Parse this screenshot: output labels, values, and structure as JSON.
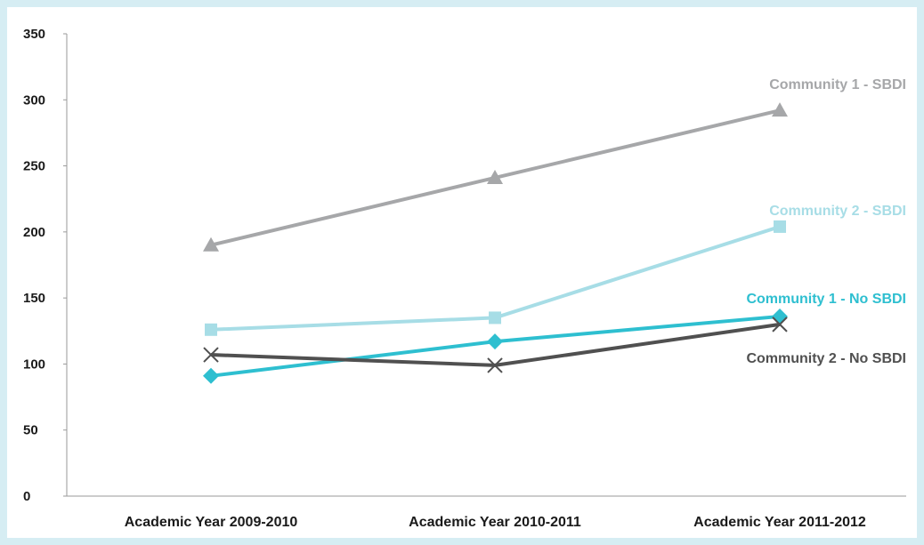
{
  "chart_data": {
    "type": "line",
    "categories": [
      "Academic Year  2009-2010",
      "Academic Year  2010-2011",
      "Academic Year  2011-2012"
    ],
    "ylim": [
      0,
      350
    ],
    "yticks": [
      0,
      50,
      100,
      150,
      200,
      250,
      300,
      350
    ],
    "ytick_labels": [
      "0",
      "50",
      "100",
      "150",
      "200",
      "250",
      "300",
      "350"
    ],
    "grid": false,
    "series": [
      {
        "name": "Community 1 - SBDI",
        "values": [
          190,
          241,
          292
        ],
        "color": "#a6a7a9",
        "marker": "triangle"
      },
      {
        "name": "Community 2 - SBDI",
        "values": [
          126,
          135,
          204
        ],
        "color": "#a7dde6",
        "marker": "square"
      },
      {
        "name": "Community 1 - No SBDI",
        "values": [
          91,
          117,
          136
        ],
        "color": "#2ebfd0",
        "marker": "diamond"
      },
      {
        "name": "Community 2 - No SBDI",
        "values": [
          107,
          99,
          130
        ],
        "color": "#505050",
        "marker": "x"
      }
    ]
  }
}
